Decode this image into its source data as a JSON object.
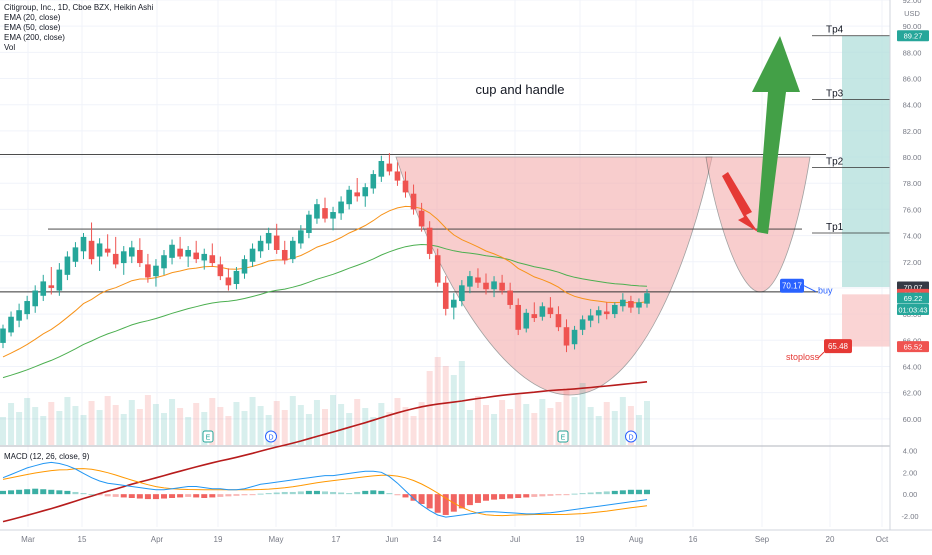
{
  "legend": {
    "title": "Citigroup, Inc., 1D, Cboe BZX, Heikin Ashi",
    "ema20": "EMA (20, close)",
    "ema50": "EMA (50, close)",
    "ema200": "EMA (200, close)",
    "vol": "Vol"
  },
  "macd_label": "MACD (12, 26, close, 9)",
  "colors": {
    "up": "#26a69a",
    "down": "#ef5350",
    "ema20": "#f7931a",
    "ema50": "#4caf50",
    "ema200": "#b71c1c",
    "macd_line": "#2196f3",
    "signal_line": "#ff9800",
    "cup_fill": "#f4a6a6",
    "target_fill": "#b2dfdb",
    "stop_fill": "#f9c9c9",
    "green_arrow": "#43a047",
    "red_arrow": "#e53935",
    "badge_blue": "#2962ff",
    "badge_red": "#e53935"
  },
  "chart_data": {
    "type": "candlestick",
    "annotations": {
      "pattern_label": "cup and handle",
      "targets": [
        {
          "label": "Tp1",
          "price": 74.2
        },
        {
          "label": "Tp2",
          "price": 79.2
        },
        {
          "label": "Tp3",
          "price": 84.4
        },
        {
          "label": "Tp4",
          "price": 89.27
        }
      ],
      "buy": {
        "label": "buy",
        "price": 70.17
      },
      "stoploss": {
        "label": "stoploss",
        "price": 65.48
      },
      "resistance_lines": [
        80.2,
        74.5,
        69.7
      ]
    },
    "price_axis": {
      "min": 58,
      "max": 92,
      "ticks": [
        "92.00",
        "90.00",
        "88.00",
        "86.00",
        "84.00",
        "82.00",
        "80.00",
        "78.00",
        "76.00",
        "74.00",
        "72.00",
        "70.00",
        "68.00",
        "66.00",
        "64.00",
        "62.00",
        "60.00"
      ],
      "unit": "USD",
      "labels": [
        {
          "text": "89.27",
          "price": 89.27,
          "color": "#26a69a"
        },
        {
          "text": "70.07",
          "price": 70.07,
          "color": "#363a45"
        },
        {
          "text": "69.51",
          "price": 69.51,
          "color": "#ef5350"
        },
        {
          "text": "69.22",
          "price": 69.22,
          "color": "#26a69a"
        },
        {
          "text": "01:03:43",
          "price": 68.35,
          "color": "#26a69a"
        },
        {
          "text": "65.52",
          "price": 65.52,
          "color": "#ef5350"
        }
      ]
    },
    "time_axis": {
      "labels": [
        "Mar",
        "15",
        "Apr",
        "19",
        "May",
        "17",
        "Jun",
        "14",
        "Jul",
        "19",
        "Aug",
        "16",
        "Sep",
        "20",
        "Oct"
      ]
    },
    "macd_axis": {
      "min": -3,
      "max": 4.4,
      "ticks": [
        "4.00",
        "2.00",
        "0.00",
        "-2.00"
      ]
    },
    "ohlc": [
      {
        "o": 65.8,
        "h": 67.2,
        "l": 65.4,
        "c": 66.9
      },
      {
        "o": 66.6,
        "h": 68.2,
        "l": 66.3,
        "c": 67.8
      },
      {
        "o": 67.5,
        "h": 68.8,
        "l": 67.0,
        "c": 68.3
      },
      {
        "o": 68.0,
        "h": 69.4,
        "l": 67.6,
        "c": 69.0
      },
      {
        "o": 68.6,
        "h": 70.2,
        "l": 68.1,
        "c": 69.8
      },
      {
        "o": 69.4,
        "h": 71.0,
        "l": 69.0,
        "c": 70.5
      },
      {
        "o": 70.2,
        "h": 71.6,
        "l": 69.5,
        "c": 70.0
      },
      {
        "o": 69.8,
        "h": 71.9,
        "l": 69.4,
        "c": 71.4
      },
      {
        "o": 71.0,
        "h": 72.8,
        "l": 70.6,
        "c": 72.4
      },
      {
        "o": 72.0,
        "h": 73.5,
        "l": 71.6,
        "c": 73.1
      },
      {
        "o": 72.8,
        "h": 74.2,
        "l": 72.2,
        "c": 73.9
      },
      {
        "o": 73.6,
        "h": 75.0,
        "l": 71.8,
        "c": 72.2
      },
      {
        "o": 72.4,
        "h": 73.8,
        "l": 71.3,
        "c": 73.4
      },
      {
        "o": 73.0,
        "h": 74.1,
        "l": 72.4,
        "c": 72.7
      },
      {
        "o": 72.6,
        "h": 73.9,
        "l": 71.5,
        "c": 71.8
      },
      {
        "o": 71.9,
        "h": 73.2,
        "l": 71.0,
        "c": 72.8
      },
      {
        "o": 72.4,
        "h": 73.6,
        "l": 71.9,
        "c": 73.1
      },
      {
        "o": 72.9,
        "h": 73.8,
        "l": 71.6,
        "c": 71.9
      },
      {
        "o": 71.8,
        "h": 72.6,
        "l": 70.4,
        "c": 70.8
      },
      {
        "o": 70.9,
        "h": 72.2,
        "l": 70.1,
        "c": 71.7
      },
      {
        "o": 71.5,
        "h": 72.9,
        "l": 71.0,
        "c": 72.5
      },
      {
        "o": 72.3,
        "h": 73.7,
        "l": 71.8,
        "c": 73.3
      },
      {
        "o": 73.0,
        "h": 73.9,
        "l": 72.2,
        "c": 72.4
      },
      {
        "o": 72.4,
        "h": 73.2,
        "l": 71.6,
        "c": 72.9
      },
      {
        "o": 72.7,
        "h": 73.6,
        "l": 71.9,
        "c": 72.2
      },
      {
        "o": 72.1,
        "h": 73.0,
        "l": 71.4,
        "c": 72.6
      },
      {
        "o": 72.5,
        "h": 73.4,
        "l": 71.6,
        "c": 71.9
      },
      {
        "o": 71.8,
        "h": 72.4,
        "l": 70.6,
        "c": 70.9
      },
      {
        "o": 70.8,
        "h": 71.5,
        "l": 69.8,
        "c": 70.2
      },
      {
        "o": 70.3,
        "h": 71.6,
        "l": 69.9,
        "c": 71.3
      },
      {
        "o": 71.1,
        "h": 72.5,
        "l": 70.7,
        "c": 72.2
      },
      {
        "o": 72.0,
        "h": 73.4,
        "l": 71.6,
        "c": 73.0
      },
      {
        "o": 72.8,
        "h": 74.0,
        "l": 72.3,
        "c": 73.6
      },
      {
        "o": 73.4,
        "h": 74.6,
        "l": 72.9,
        "c": 74.2
      },
      {
        "o": 74.0,
        "h": 74.9,
        "l": 72.6,
        "c": 72.9
      },
      {
        "o": 72.9,
        "h": 73.6,
        "l": 71.8,
        "c": 72.1
      },
      {
        "o": 72.2,
        "h": 73.9,
        "l": 71.9,
        "c": 73.6
      },
      {
        "o": 73.4,
        "h": 74.8,
        "l": 73.0,
        "c": 74.4
      },
      {
        "o": 74.2,
        "h": 75.9,
        "l": 73.8,
        "c": 75.6
      },
      {
        "o": 75.3,
        "h": 76.8,
        "l": 74.9,
        "c": 76.4
      },
      {
        "o": 76.1,
        "h": 76.9,
        "l": 75.0,
        "c": 75.3
      },
      {
        "o": 75.3,
        "h": 76.2,
        "l": 74.4,
        "c": 75.8
      },
      {
        "o": 75.7,
        "h": 77.0,
        "l": 75.2,
        "c": 76.6
      },
      {
        "o": 76.4,
        "h": 77.8,
        "l": 76.0,
        "c": 77.5
      },
      {
        "o": 77.3,
        "h": 78.4,
        "l": 76.6,
        "c": 77.0
      },
      {
        "o": 77.0,
        "h": 78.0,
        "l": 76.2,
        "c": 77.7
      },
      {
        "o": 77.6,
        "h": 79.0,
        "l": 77.2,
        "c": 78.7
      },
      {
        "o": 78.5,
        "h": 80.1,
        "l": 78.1,
        "c": 79.7
      },
      {
        "o": 79.5,
        "h": 80.3,
        "l": 78.6,
        "c": 78.9
      },
      {
        "o": 78.9,
        "h": 79.6,
        "l": 77.8,
        "c": 78.2
      },
      {
        "o": 78.2,
        "h": 78.9,
        "l": 76.9,
        "c": 77.3
      },
      {
        "o": 77.2,
        "h": 77.9,
        "l": 75.6,
        "c": 76.0
      },
      {
        "o": 75.9,
        "h": 76.5,
        "l": 74.3,
        "c": 74.7
      },
      {
        "o": 74.6,
        "h": 75.1,
        "l": 72.2,
        "c": 72.6
      },
      {
        "o": 72.5,
        "h": 73.0,
        "l": 70.1,
        "c": 70.4
      },
      {
        "o": 70.4,
        "h": 70.9,
        "l": 67.9,
        "c": 68.4
      },
      {
        "o": 68.5,
        "h": 69.6,
        "l": 67.6,
        "c": 69.1
      },
      {
        "o": 69.0,
        "h": 70.6,
        "l": 68.6,
        "c": 70.2
      },
      {
        "o": 70.1,
        "h": 71.3,
        "l": 69.6,
        "c": 70.9
      },
      {
        "o": 70.8,
        "h": 71.5,
        "l": 70.0,
        "c": 70.4
      },
      {
        "o": 70.4,
        "h": 71.1,
        "l": 69.5,
        "c": 69.9
      },
      {
        "o": 69.9,
        "h": 70.9,
        "l": 69.3,
        "c": 70.5
      },
      {
        "o": 70.4,
        "h": 71.0,
        "l": 69.5,
        "c": 69.8
      },
      {
        "o": 69.8,
        "h": 70.4,
        "l": 68.4,
        "c": 68.7
      },
      {
        "o": 68.7,
        "h": 69.2,
        "l": 66.4,
        "c": 66.8
      },
      {
        "o": 66.9,
        "h": 68.4,
        "l": 66.6,
        "c": 68.1
      },
      {
        "o": 68.0,
        "h": 68.9,
        "l": 67.4,
        "c": 67.7
      },
      {
        "o": 67.8,
        "h": 68.9,
        "l": 67.5,
        "c": 68.6
      },
      {
        "o": 68.5,
        "h": 69.3,
        "l": 67.7,
        "c": 68.0
      },
      {
        "o": 68.0,
        "h": 68.6,
        "l": 66.7,
        "c": 67.0
      },
      {
        "o": 67.0,
        "h": 67.6,
        "l": 65.1,
        "c": 65.6
      },
      {
        "o": 65.7,
        "h": 67.1,
        "l": 65.3,
        "c": 66.8
      },
      {
        "o": 66.8,
        "h": 67.9,
        "l": 66.4,
        "c": 67.6
      },
      {
        "o": 67.5,
        "h": 68.4,
        "l": 67.0,
        "c": 67.9
      },
      {
        "o": 67.9,
        "h": 68.6,
        "l": 67.3,
        "c": 68.3
      },
      {
        "o": 68.2,
        "h": 68.9,
        "l": 67.6,
        "c": 68.0
      },
      {
        "o": 68.0,
        "h": 68.9,
        "l": 67.7,
        "c": 68.7
      },
      {
        "o": 68.6,
        "h": 69.6,
        "l": 68.2,
        "c": 69.1
      },
      {
        "o": 69.0,
        "h": 69.4,
        "l": 68.1,
        "c": 68.5
      },
      {
        "o": 68.5,
        "h": 69.2,
        "l": 68.0,
        "c": 68.9
      },
      {
        "o": 68.8,
        "h": 69.9,
        "l": 68.5,
        "c": 69.6
      }
    ]
  }
}
